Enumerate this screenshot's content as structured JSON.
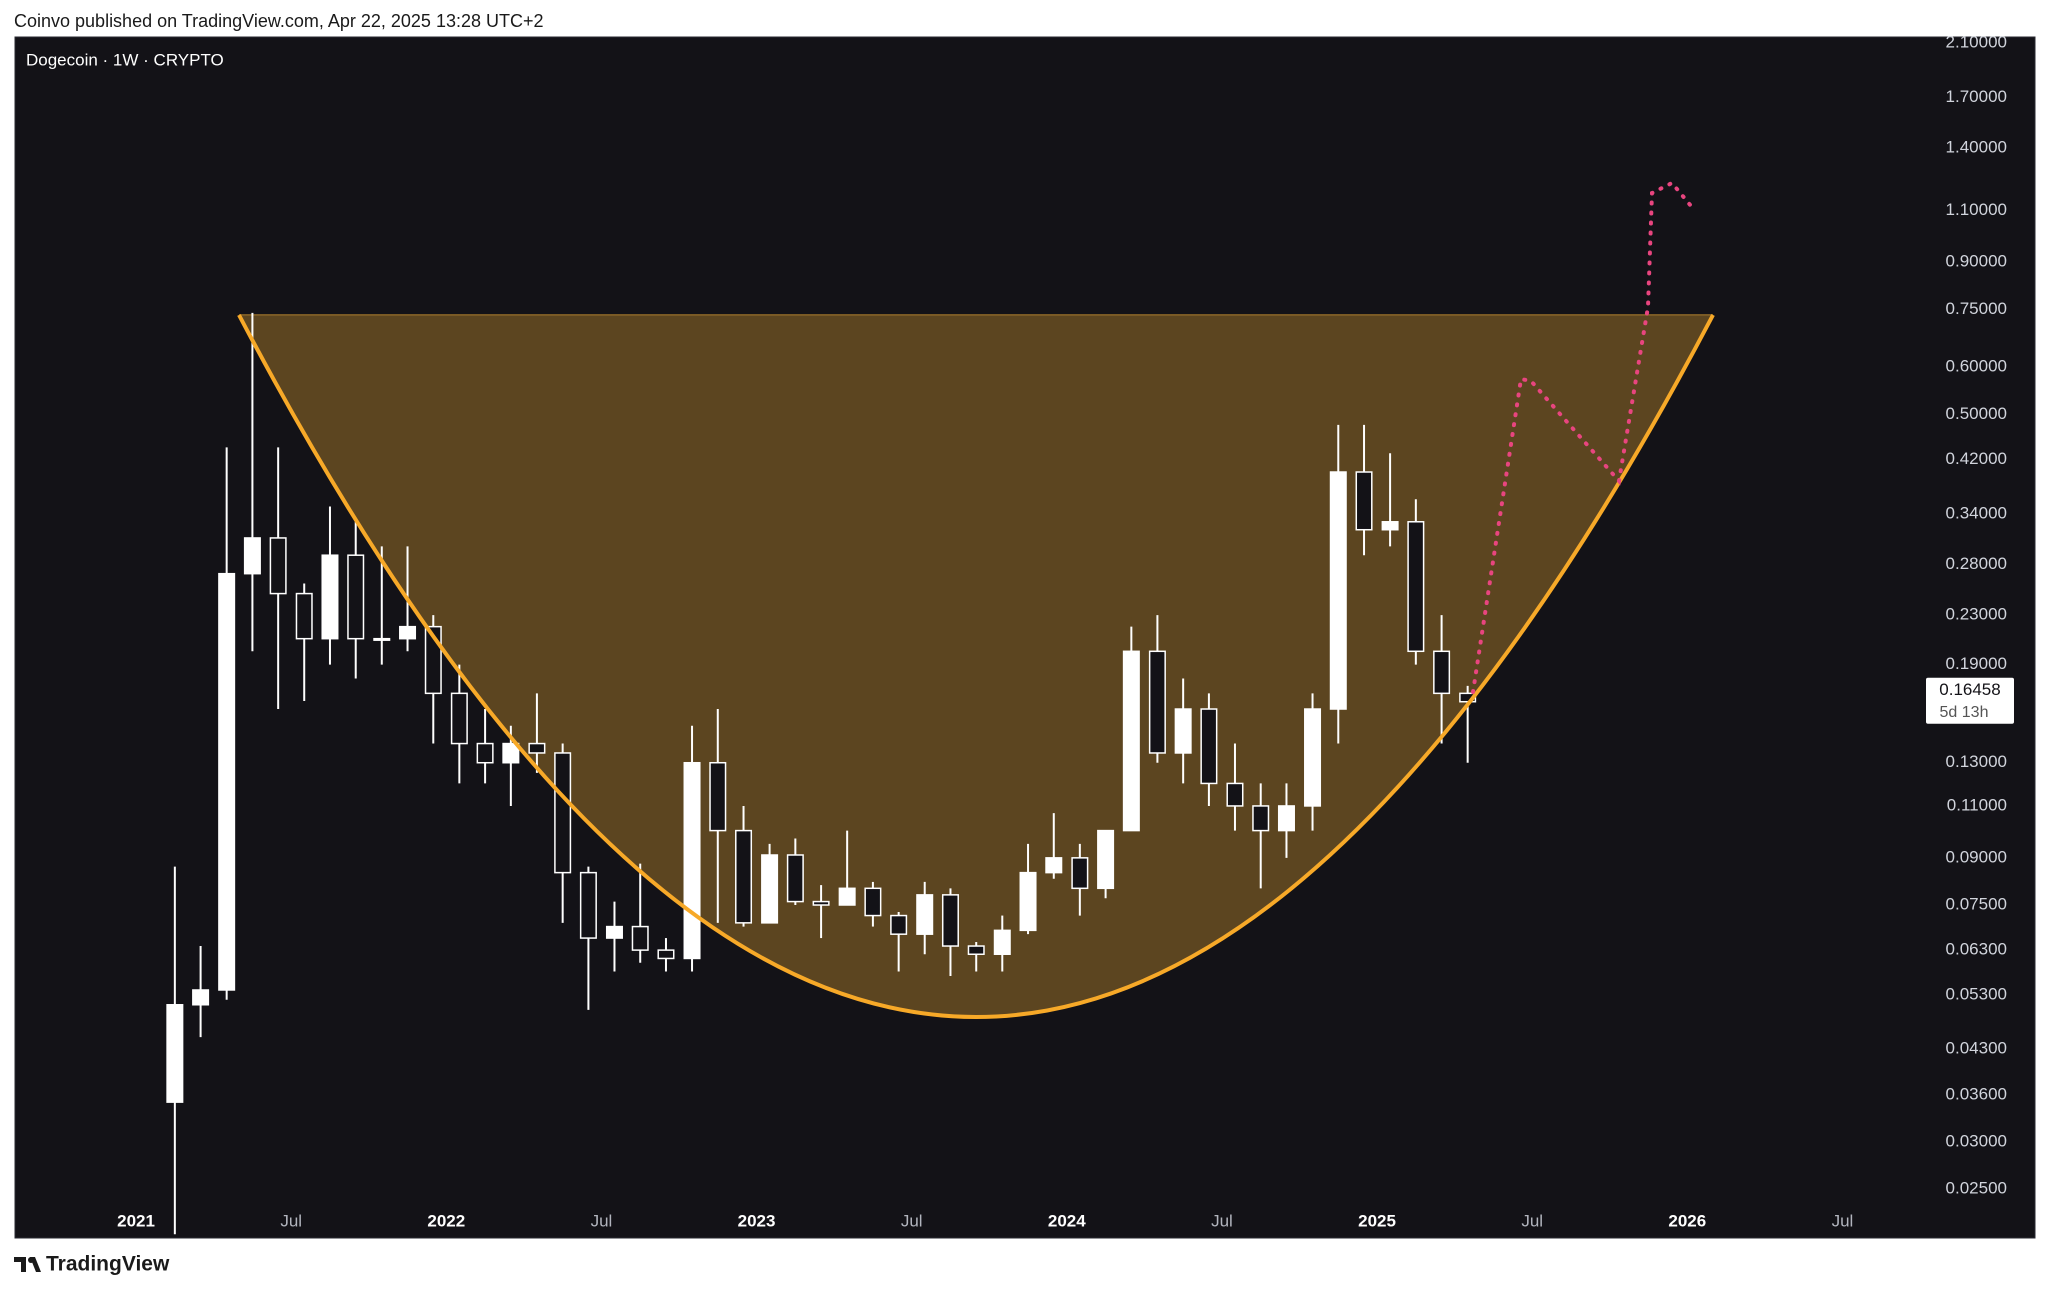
{
  "publisher_line": "Coinvo published on TradingView.com, Apr 22, 2025 13:28 UTC+2",
  "brand": "TradingView",
  "chart_data": {
    "type": "candlestick",
    "title": "Dogecoin · 1W · CRYPTO",
    "color": "#ffffff",
    "log_scale": true,
    "grid": false,
    "x": [
      2021.125,
      2021.208,
      2021.292,
      2021.375,
      2021.458,
      2021.542,
      2021.625,
      2021.708,
      2021.792,
      2021.875,
      2021.958,
      2022.042,
      2022.125,
      2022.208,
      2022.292,
      2022.375,
      2022.458,
      2022.542,
      2022.625,
      2022.708,
      2022.792,
      2022.875,
      2022.958,
      2023.042,
      2023.125,
      2023.208,
      2023.292,
      2023.375,
      2023.458,
      2023.542,
      2023.625,
      2023.708,
      2023.792,
      2023.875,
      2023.958,
      2024.042,
      2024.125,
      2024.208,
      2024.292,
      2024.375,
      2024.458,
      2024.542,
      2024.625,
      2024.708,
      2024.792,
      2024.875,
      2024.958,
      2025.042,
      2025.125,
      2025.208,
      2025.292
    ],
    "open": [
      0.035,
      0.051,
      0.054,
      0.27,
      0.31,
      0.25,
      0.21,
      0.29,
      0.21,
      0.21,
      0.22,
      0.17,
      0.14,
      0.13,
      0.14,
      0.135,
      0.085,
      0.066,
      0.069,
      0.063,
      0.061,
      0.13,
      0.1,
      0.07,
      0.091,
      0.076,
      0.075,
      0.08,
      0.072,
      0.067,
      0.078,
      0.064,
      0.062,
      0.068,
      0.085,
      0.09,
      0.08,
      0.1,
      0.2,
      0.135,
      0.16,
      0.12,
      0.11,
      0.1,
      0.11,
      0.16,
      0.4,
      0.32,
      0.33,
      0.2,
      0.17
    ],
    "high": [
      0.087,
      0.064,
      0.44,
      0.74,
      0.44,
      0.26,
      0.35,
      0.33,
      0.3,
      0.3,
      0.23,
      0.19,
      0.16,
      0.15,
      0.17,
      0.14,
      0.087,
      0.076,
      0.088,
      0.066,
      0.15,
      0.16,
      0.11,
      0.095,
      0.097,
      0.081,
      0.1,
      0.082,
      0.073,
      0.082,
      0.08,
      0.065,
      0.072,
      0.095,
      0.107,
      0.095,
      0.1,
      0.22,
      0.23,
      0.18,
      0.17,
      0.14,
      0.12,
      0.12,
      0.17,
      0.48,
      0.48,
      0.43,
      0.36,
      0.23,
      0.175
    ],
    "low": [
      0.021,
      0.045,
      0.052,
      0.2,
      0.16,
      0.165,
      0.19,
      0.18,
      0.19,
      0.2,
      0.14,
      0.12,
      0.12,
      0.11,
      0.125,
      0.07,
      0.05,
      0.058,
      0.06,
      0.058,
      0.058,
      0.07,
      0.069,
      0.07,
      0.075,
      0.066,
      0.075,
      0.069,
      0.058,
      0.062,
      0.057,
      0.058,
      0.058,
      0.067,
      0.083,
      0.072,
      0.077,
      0.1,
      0.13,
      0.12,
      0.11,
      0.1,
      0.08,
      0.09,
      0.1,
      0.14,
      0.29,
      0.3,
      0.19,
      0.14,
      0.13
    ],
    "close": [
      0.051,
      0.054,
      0.27,
      0.31,
      0.25,
      0.21,
      0.29,
      0.21,
      0.21,
      0.22,
      0.17,
      0.14,
      0.13,
      0.14,
      0.135,
      0.085,
      0.066,
      0.069,
      0.063,
      0.061,
      0.13,
      0.1,
      0.07,
      0.091,
      0.076,
      0.075,
      0.08,
      0.072,
      0.067,
      0.078,
      0.064,
      0.062,
      0.068,
      0.085,
      0.09,
      0.08,
      0.1,
      0.2,
      0.135,
      0.16,
      0.12,
      0.11,
      0.1,
      0.11,
      0.16,
      0.4,
      0.32,
      0.33,
      0.2,
      0.17,
      0.16458
    ],
    "last_price": 0.16458,
    "countdown": "5d 13h",
    "xlim": [
      2020.613,
      2026.75
    ],
    "xticks": [
      2021,
      {
        "value": 2021.5,
        "label": "Jul"
      },
      2022,
      {
        "value": 2022.5,
        "label": "Jul"
      },
      2023,
      {
        "value": 2023.5,
        "label": "Jul"
      },
      2024,
      {
        "value": 2024.5,
        "label": "Jul"
      },
      2025,
      {
        "value": 2025.5,
        "label": "Jul"
      },
      2026,
      {
        "value": 2026.5,
        "label": "Jul"
      }
    ],
    "ylim": [
      0.0207,
      2.15
    ],
    "yticks": [
      {
        "value": 2.1,
        "label": "2.10000"
      },
      {
        "value": 1.7,
        "label": "1.70000"
      },
      {
        "value": 1.4,
        "label": "1.40000"
      },
      {
        "value": 1.1,
        "label": "1.10000"
      },
      {
        "value": 0.9,
        "label": "0.90000"
      },
      {
        "value": 0.75,
        "label": "0.75000"
      },
      {
        "value": 0.6,
        "label": "0.60000"
      },
      {
        "value": 0.5,
        "label": "0.50000"
      },
      {
        "value": 0.42,
        "label": "0.42000"
      },
      {
        "value": 0.34,
        "label": "0.34000"
      },
      {
        "value": 0.28,
        "label": "0.28000"
      },
      {
        "value": 0.23,
        "label": "0.23000"
      },
      {
        "value": 0.19,
        "label": "0.19000"
      },
      {
        "value": 0.13,
        "label": "0.13000"
      },
      {
        "value": 0.11,
        "label": "0.11000"
      },
      {
        "value": 0.09,
        "label": "0.09000"
      },
      {
        "value": 0.075,
        "label": "0.07500"
      },
      {
        "value": 0.063,
        "label": "0.06300"
      },
      {
        "value": 0.053,
        "label": "0.05300"
      },
      {
        "value": 0.043,
        "label": "0.04300"
      },
      {
        "value": 0.036,
        "label": "0.03600"
      },
      {
        "value": 0.03,
        "label": "0.03000"
      },
      {
        "value": 0.025,
        "label": "0.02500"
      }
    ]
  }
}
